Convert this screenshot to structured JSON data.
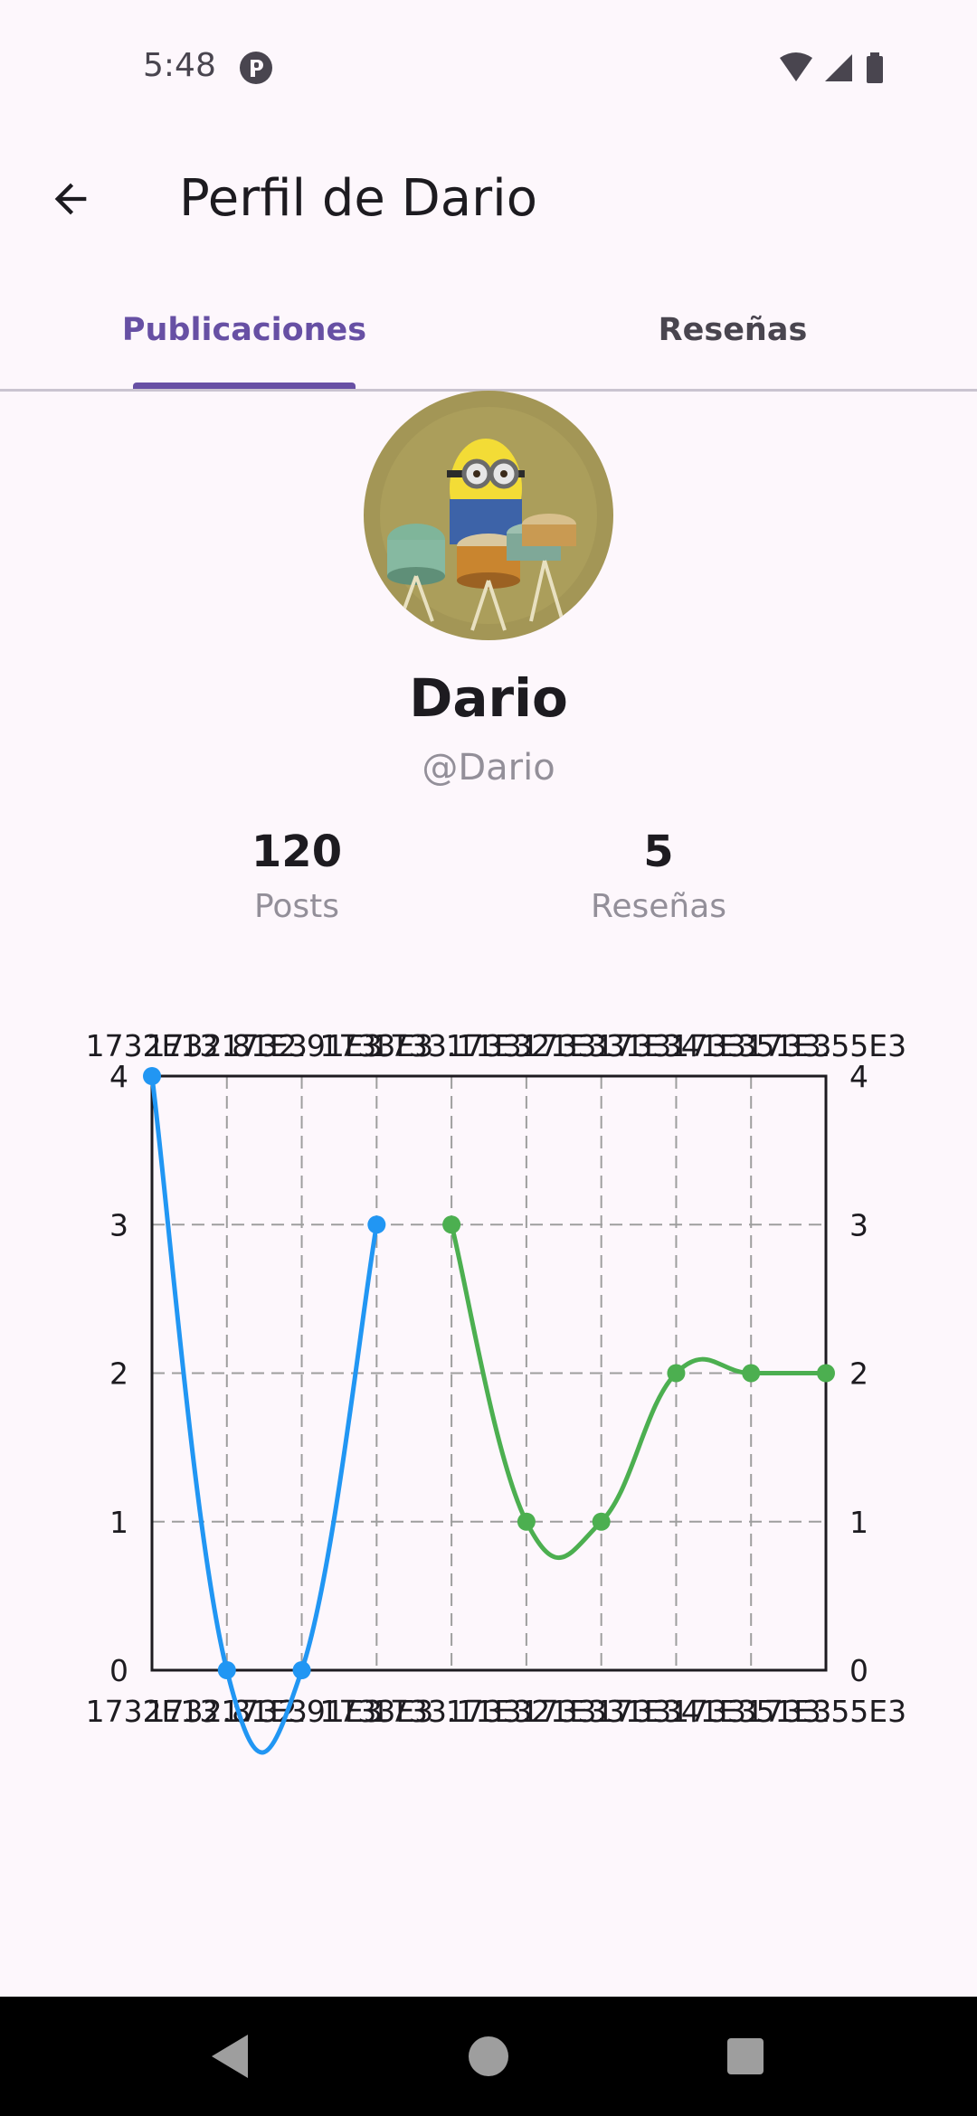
{
  "status_bar": {
    "time": "5:48"
  },
  "header": {
    "title": "Perfil de Dario",
    "back_icon": "arrow-back-icon"
  },
  "tabs": [
    {
      "label": "Publicaciones",
      "active": true
    },
    {
      "label": "Reseñas",
      "active": false
    }
  ],
  "profile": {
    "name": "Dario",
    "handle": "@Dario",
    "avatar_icon": "minion-drummer-avatar"
  },
  "stats": [
    {
      "value": "120",
      "label": "Posts"
    },
    {
      "value": "5",
      "label": "Reseñas"
    }
  ],
  "chart_data": {
    "type": "line",
    "x": [
      0,
      1,
      2,
      3,
      4,
      5,
      6,
      7,
      8,
      9
    ],
    "x_tick_labels": [
      "1732E13",
      "1732.81E3",
      "1732.91E3",
      "1733E3",
      "1733.11E3",
      "1733.21E3",
      "1733.31E3",
      "1733.41E3",
      "1733.51E3",
      "1733.55E3"
    ],
    "ylim": [
      0,
      4
    ],
    "y_ticks": [
      0,
      1,
      2,
      3,
      4
    ],
    "grid": true,
    "series": [
      {
        "x": [
          0,
          1,
          2,
          3
        ],
        "values": [
          4,
          0,
          0,
          3
        ],
        "color": "#2196f3"
      },
      {
        "x": [
          4,
          5,
          6,
          7,
          8,
          9
        ],
        "values": [
          3,
          1,
          1,
          2,
          2,
          2
        ],
        "color": "#4caf50"
      }
    ]
  },
  "colors": {
    "accent": "#6750a4",
    "background": "#fdf7fc",
    "series_blue": "#2196f3",
    "series_green": "#4caf50"
  }
}
